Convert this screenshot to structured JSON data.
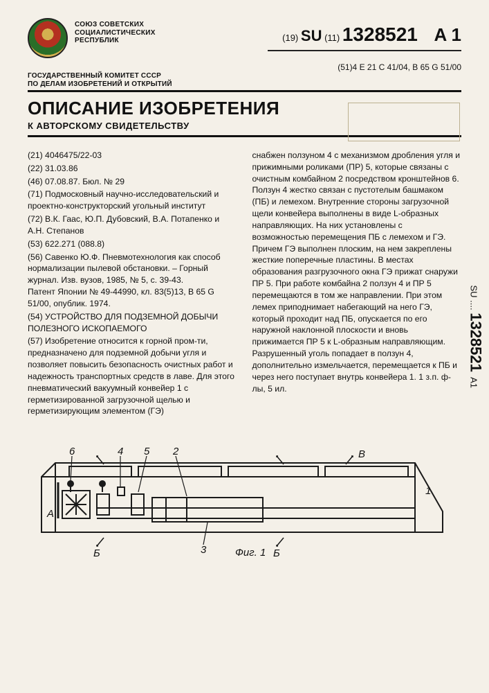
{
  "header": {
    "union_lines": "СОЮЗ СОВЕТСКИХ\nСОЦИАЛИСТИЧЕСКИХ\nРЕСПУБЛИК",
    "su_prefix": "(19)",
    "su_code": "SU",
    "su_mid": "(11)",
    "su_number": "1328521",
    "su_a1": "A 1",
    "ipc": "(51)4 E 21 C 41/04, B 65 G 51/00"
  },
  "committee": "ГОСУДАРСТВЕННЫЙ КОМИТЕТ СССР\nПО ДЕЛАМ ИЗОБРЕТЕНИЙ И ОТКРЫТИЙ",
  "title": "ОПИСАНИЕ ИЗОБРЕТЕНИЯ",
  "subtitle": "К АВТОРСКОМУ СВИДЕТЕЛЬСТВУ",
  "left_col": {
    "l21": "(21) 4046475/22-03",
    "l22": "(22) 31.03.86",
    "l46": "(46) 07.08.87. Бюл. № 29",
    "l71": "(71) Подмосковный научно-исследовательский и проектно-конструкторский угольный институт",
    "l72": "(72) В.К. Гаас, Ю.П. Дубовский, В.А. Потапенко и А.Н. Степанов",
    "l53": "(53) 622.271 (088.8)",
    "l56": "(56) Савенко Ю.Ф. Пневмотехнология как способ нормализации пылевой обстановки. – Горный журнал. Изв. вузов, 1985, № 5, с. 39-43.\n    Патент Японии № 49-44990, кл. 83(5)13, B 65 G 51/00, опублик. 1974.",
    "l54": "(54) УСТРОЙСТВО ДЛЯ ПОДЗЕМНОЙ ДОБЫЧИ ПОЛЕЗНОГО ИСКОПАЕМОГО",
    "l57": "(57) Изобретение относится к горной пром-ти, предназначено для подземной добычи угля и позволяет повысить безопасность очистных работ и надежность транспортных средств в лаве. Для этого пневматический вакуумный конвейер 1 с герметизированной загрузочной щелью и герметизирующим элементом (ГЭ)"
  },
  "right_col": {
    "text": "снабжен ползуном 4 с механизмом дробления угля и прижимными роликами (ПР) 5, которые связаны с очистным комбайном 2 посредством кронштейнов 6. Ползун 4 жестко связан с пустотелым башмаком (ПБ) и лемехом. Внутренние стороны загрузочной щели конвейера выполнены в виде L-образных направляющих. На них установлены с возможностью перемещения ПБ с лемехом и ГЭ. Причем ГЭ выполнен плоским, на нем закреплены жесткие поперечные пластины. В местах образования разгрузочного окна ГЭ прижат снаружи ПР 5. При работе комбайна 2 ползун 4 и ПР 5 перемещаются в том же направлении. При этом лемех приподнимает набегающий на него ГЭ, который проходит над ПБ, опускается по его наружной наклонной плоскости и вновь прижимается ПР 5 к L-образным направляющим. Разрушенный уголь попадает в ползун 4, дополнительно измельчается, перемещается к ПБ и через него поступает внутрь конвейера 1. 1 з.п. ф-лы, 5 ил."
  },
  "figure": {
    "caption": "Фиг. 1",
    "labels": [
      "6",
      "4",
      "5",
      "2",
      "1",
      "3",
      "А",
      "Б",
      "В"
    ],
    "stroke": "#1a1a1a",
    "width": 2
  },
  "spine": "SU .... 1328521   A1"
}
